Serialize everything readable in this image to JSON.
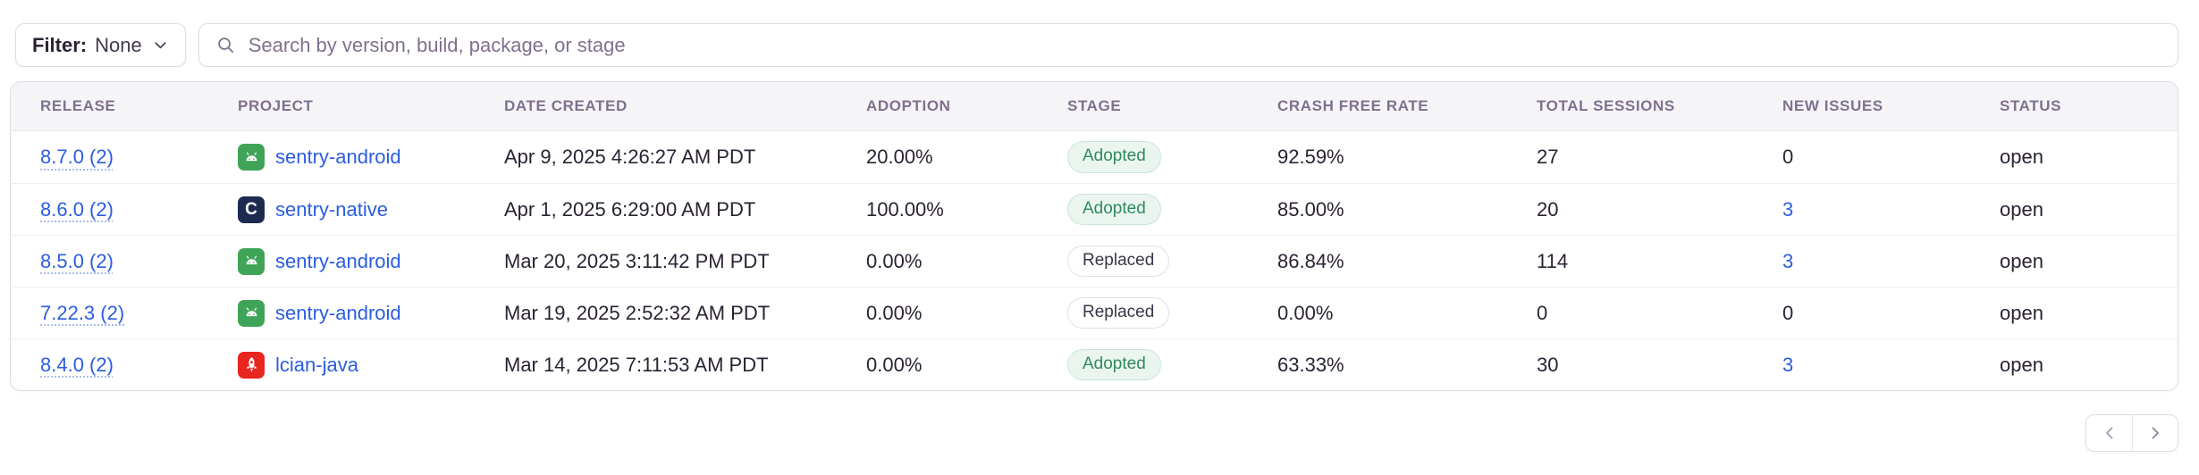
{
  "toolbar": {
    "filter_label": "Filter:",
    "filter_value": "None",
    "search_placeholder": "Search by version, build, package, or stage"
  },
  "table": {
    "columns": [
      "RELEASE",
      "PROJECT",
      "DATE CREATED",
      "ADOPTION",
      "STAGE",
      "CRASH FREE RATE",
      "TOTAL SESSIONS",
      "NEW ISSUES",
      "STATUS"
    ],
    "rows": [
      {
        "release": "8.7.0 (2)",
        "project": "sentry-android",
        "platform": "android",
        "date_created": "Apr 9, 2025 4:26:27 AM PDT",
        "adoption": "20.00%",
        "stage": "Adopted",
        "crash_free_rate": "92.59%",
        "total_sessions": "27",
        "new_issues": "0",
        "new_issues_link": false,
        "status": "open"
      },
      {
        "release": "8.6.0 (2)",
        "project": "sentry-native",
        "platform": "native",
        "date_created": "Apr 1, 2025 6:29:00 AM PDT",
        "adoption": "100.00%",
        "stage": "Adopted",
        "crash_free_rate": "85.00%",
        "total_sessions": "20",
        "new_issues": "3",
        "new_issues_link": true,
        "status": "open"
      },
      {
        "release": "8.5.0 (2)",
        "project": "sentry-android",
        "platform": "android",
        "date_created": "Mar 20, 2025 3:11:42 PM PDT",
        "adoption": "0.00%",
        "stage": "Replaced",
        "crash_free_rate": "86.84%",
        "total_sessions": "114",
        "new_issues": "3",
        "new_issues_link": true,
        "status": "open"
      },
      {
        "release": "7.22.3 (2)",
        "project": "sentry-android",
        "platform": "android",
        "date_created": "Mar 19, 2025 2:52:32 AM PDT",
        "adoption": "0.00%",
        "stage": "Replaced",
        "crash_free_rate": "0.00%",
        "total_sessions": "0",
        "new_issues": "0",
        "new_issues_link": false,
        "status": "open"
      },
      {
        "release": "8.4.0 (2)",
        "project": "lcian-java",
        "platform": "java",
        "date_created": "Mar 14, 2025 7:11:53 AM PDT",
        "adoption": "0.00%",
        "stage": "Adopted",
        "crash_free_rate": "63.33%",
        "total_sessions": "30",
        "new_issues": "3",
        "new_issues_link": true,
        "status": "open"
      }
    ]
  },
  "pagination": {
    "prev": "chevron-left",
    "next": "chevron-right"
  },
  "colors": {
    "text": "#2b2233",
    "subtext": "#80708f",
    "link": "#2b5de0",
    "border": "#e0dce5",
    "adopted-bg": "#ebf5f0",
    "adopted-text": "#2f8a5f",
    "android": "#3fa457",
    "native": "#1d2b50",
    "java": "#e8251f"
  }
}
